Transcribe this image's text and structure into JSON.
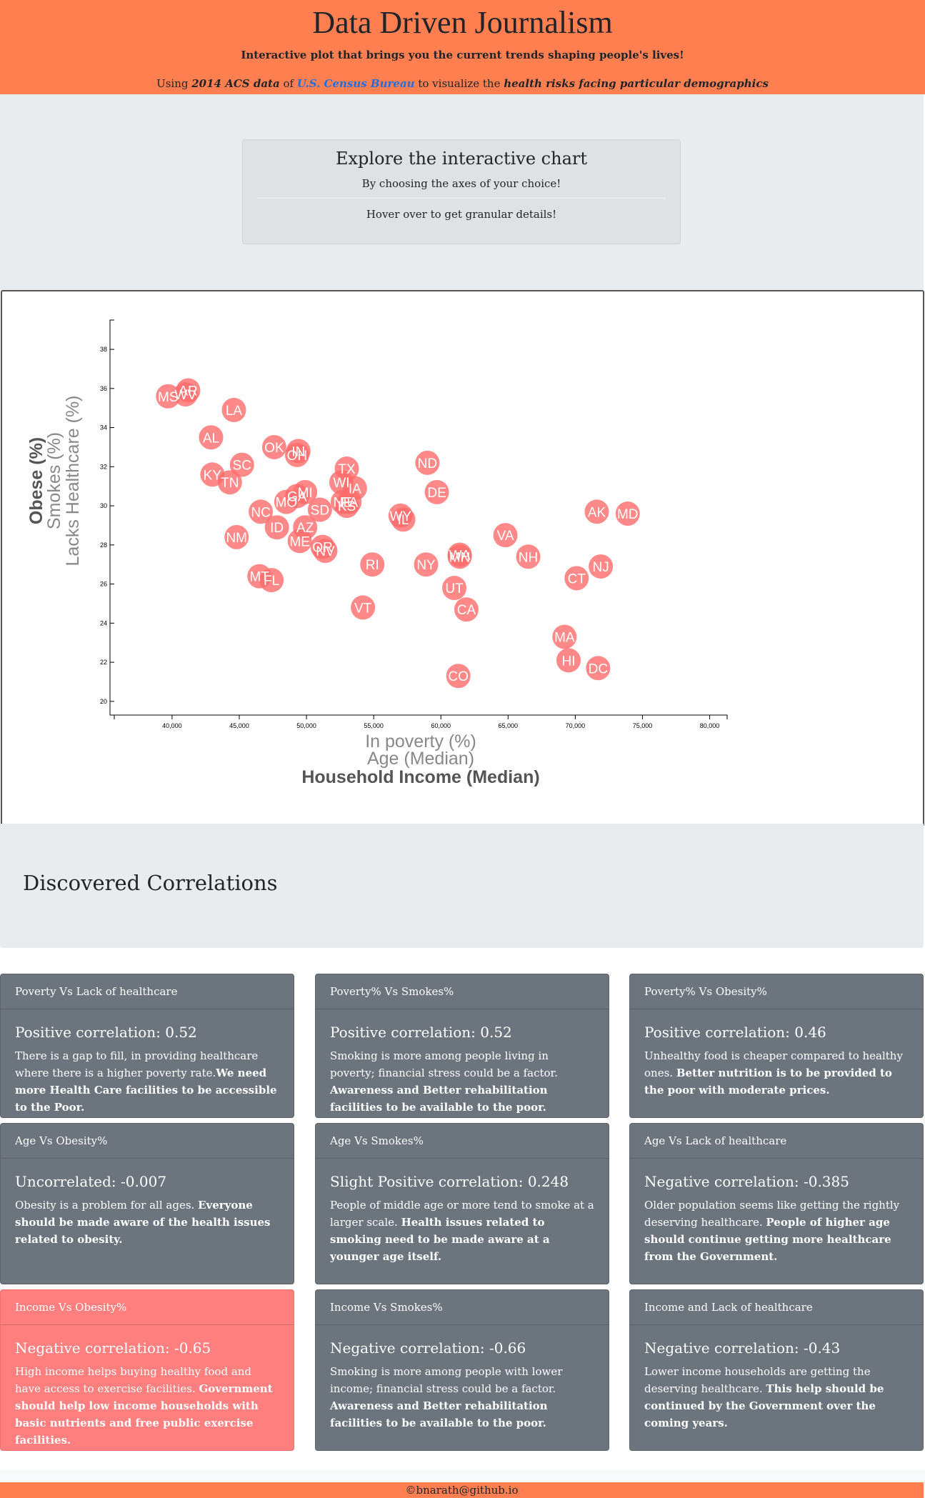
{
  "header": {
    "title": "Data Driven Journalism",
    "tagline": "Interactive plot that brings you the current trends shaping people's lives!",
    "sub_prefix": "Using ",
    "sub_data": "2014 ACS data",
    "sub_of": " of ",
    "sub_link": "U.S. Census Bureau",
    "sub_mid": " to visualize the ",
    "sub_emph": "health risks facing particular demographics"
  },
  "explore": {
    "title": "Explore the interactive chart",
    "line1": "By choosing the axes of your choice!",
    "line2": "Hover over to get granular details!"
  },
  "chart_data": {
    "type": "scatter",
    "x_axis_options": [
      "In poverty (%)",
      "Age (Median)",
      "Household Income (Median)"
    ],
    "x_active": "Household Income (Median)",
    "y_axis_options": [
      "Obese (%)",
      "Smokes (%)",
      "Lacks Healthcare (%)"
    ],
    "y_active": "Obese (%)",
    "xlim": [
      35700,
      81300
    ],
    "ylim": [
      19.3,
      39.5
    ],
    "x_ticks": [
      40000,
      45000,
      50000,
      55000,
      60000,
      65000,
      70000,
      75000,
      80000
    ],
    "x_tick_labels": [
      "40,000",
      "45,000",
      "50,000",
      "55,000",
      "60,000",
      "65,000",
      "70,000",
      "75,000",
      "80,000"
    ],
    "y_ticks": [
      20,
      22,
      24,
      26,
      28,
      30,
      32,
      34,
      36,
      38
    ],
    "marker_color": "#ff6b6b",
    "points": [
      {
        "state": "MS",
        "x": 39700,
        "y": 35.6
      },
      {
        "state": "AR",
        "x": 41200,
        "y": 35.9
      },
      {
        "state": "WV",
        "x": 41000,
        "y": 35.7
      },
      {
        "state": "LA",
        "x": 44600,
        "y": 34.9
      },
      {
        "state": "AL",
        "x": 42900,
        "y": 33.5
      },
      {
        "state": "KY",
        "x": 43000,
        "y": 31.6
      },
      {
        "state": "SC",
        "x": 45200,
        "y": 32.1
      },
      {
        "state": "TN",
        "x": 44300,
        "y": 31.2
      },
      {
        "state": "OK",
        "x": 47600,
        "y": 33.0
      },
      {
        "state": "OH",
        "x": 49300,
        "y": 32.6
      },
      {
        "state": "IN",
        "x": 49400,
        "y": 32.8
      },
      {
        "state": "TX",
        "x": 53000,
        "y": 31.9
      },
      {
        "state": "WI",
        "x": 52600,
        "y": 31.2
      },
      {
        "state": "IA",
        "x": 53600,
        "y": 30.9
      },
      {
        "state": "MI",
        "x": 49900,
        "y": 30.7
      },
      {
        "state": "MO",
        "x": 48500,
        "y": 30.2
      },
      {
        "state": "KS",
        "x": 53000,
        "y": 30.0
      },
      {
        "state": "NE",
        "x": 52700,
        "y": 30.2
      },
      {
        "state": "PA",
        "x": 53200,
        "y": 30.2
      },
      {
        "state": "NC",
        "x": 46600,
        "y": 29.7
      },
      {
        "state": "SD",
        "x": 51000,
        "y": 29.8
      },
      {
        "state": "GA",
        "x": 49300,
        "y": 30.5
      },
      {
        "state": "IL",
        "x": 57200,
        "y": 29.3
      },
      {
        "state": "WY",
        "x": 57000,
        "y": 29.5
      },
      {
        "state": "ND",
        "x": 59000,
        "y": 32.2
      },
      {
        "state": "DE",
        "x": 59700,
        "y": 30.7
      },
      {
        "state": "ID",
        "x": 47800,
        "y": 28.9
      },
      {
        "state": "AZ",
        "x": 49900,
        "y": 28.9
      },
      {
        "state": "NM",
        "x": 44800,
        "y": 28.4
      },
      {
        "state": "ME",
        "x": 49500,
        "y": 28.2
      },
      {
        "state": "NV",
        "x": 51400,
        "y": 27.7
      },
      {
        "state": "OR",
        "x": 51200,
        "y": 27.9
      },
      {
        "state": "FL",
        "x": 47400,
        "y": 26.2
      },
      {
        "state": "MT",
        "x": 46500,
        "y": 26.4
      },
      {
        "state": "RI",
        "x": 54900,
        "y": 27.0
      },
      {
        "state": "NY",
        "x": 58900,
        "y": 27.0
      },
      {
        "state": "WA",
        "x": 61400,
        "y": 27.5
      },
      {
        "state": "MN",
        "x": 61400,
        "y": 27.4
      },
      {
        "state": "VA",
        "x": 64800,
        "y": 28.5
      },
      {
        "state": "NH",
        "x": 66500,
        "y": 27.4
      },
      {
        "state": "UT",
        "x": 61000,
        "y": 25.8
      },
      {
        "state": "CA",
        "x": 61900,
        "y": 24.7
      },
      {
        "state": "VT",
        "x": 54200,
        "y": 24.8
      },
      {
        "state": "AK",
        "x": 71600,
        "y": 29.7
      },
      {
        "state": "MD",
        "x": 73900,
        "y": 29.6
      },
      {
        "state": "NJ",
        "x": 71900,
        "y": 26.9
      },
      {
        "state": "CT",
        "x": 70100,
        "y": 26.3
      },
      {
        "state": "MA",
        "x": 69200,
        "y": 23.3
      },
      {
        "state": "HI",
        "x": 69500,
        "y": 22.1
      },
      {
        "state": "DC",
        "x": 71700,
        "y": 21.7
      },
      {
        "state": "CO",
        "x": 61300,
        "y": 21.3
      }
    ]
  },
  "correlations": {
    "heading": "Discovered Correlations",
    "cards": [
      {
        "header": "Poverty Vs Lack of healthcare",
        "title": "Positive correlation: 0.52",
        "text": "There is a gap to fill, in providing healthcare where there is a higher poverty rate.",
        "bold": "We need more Health Care facilities to be accessible to the Poor."
      },
      {
        "header": "Poverty% Vs Smokes%",
        "title": "Positive correlation: 0.52",
        "text": "Smoking is more among people living in poverty; financial stress could be a factor. ",
        "bold": "Awareness and Better rehabilitation facilities to be available to the poor."
      },
      {
        "header": "Poverty% Vs Obesity%",
        "title": "Positive correlation: 0.46",
        "text": "Unhealthy food is cheaper compared to healthy ones. ",
        "bold": "Better nutrition is to be provided to the poor with moderate prices."
      },
      {
        "header": "Age Vs Obesity%",
        "title": "Uncorrelated: -0.007",
        "text": "Obesity is a problem for all ages. ",
        "bold": "Everyone should be made aware of the health issues related to obesity."
      },
      {
        "header": "Age Vs Smokes%",
        "title": "Slight Positive correlation: 0.248",
        "text": "People of middle age or more tend to smoke at a larger scale. ",
        "bold": "Health issues related to smoking need to be made aware at a younger age itself."
      },
      {
        "header": "Age Vs Lack of healthcare",
        "title": "Negative correlation: -0.385",
        "text": "Older population seems like getting the rightly deserving healthcare. ",
        "bold": "People of higher age should continue getting more healthcare from the Government."
      },
      {
        "header": "Income Vs Obesity%",
        "title": "Negative correlation: -0.65",
        "text": "High income helps buying healthy food and have access to exercise facilities. ",
        "bold": "Government should help low income households with basic nutrients and free public exercise facilities."
      },
      {
        "header": "Income Vs Smokes%",
        "title": "Negative correlation: -0.66",
        "text": "Smoking is more among people with lower income; financial stress could be a factor. ",
        "bold": "Awareness and Better rehabilitation facilities to be available to the poor."
      },
      {
        "header": "Income and Lack of healthcare",
        "title": "Negative correlation: -0.43",
        "text": "Lower income households are getting the deserving healthcare. ",
        "bold": "This help should be continued by the Government over the coming years."
      }
    ]
  },
  "footer": {
    "text": "©bnarath@github.io"
  },
  "colors": {
    "accent": "#ff7f50",
    "card": "#6c757d",
    "card_highlight": "#ff7f7f",
    "jumbotron": "#e9ecef"
  }
}
